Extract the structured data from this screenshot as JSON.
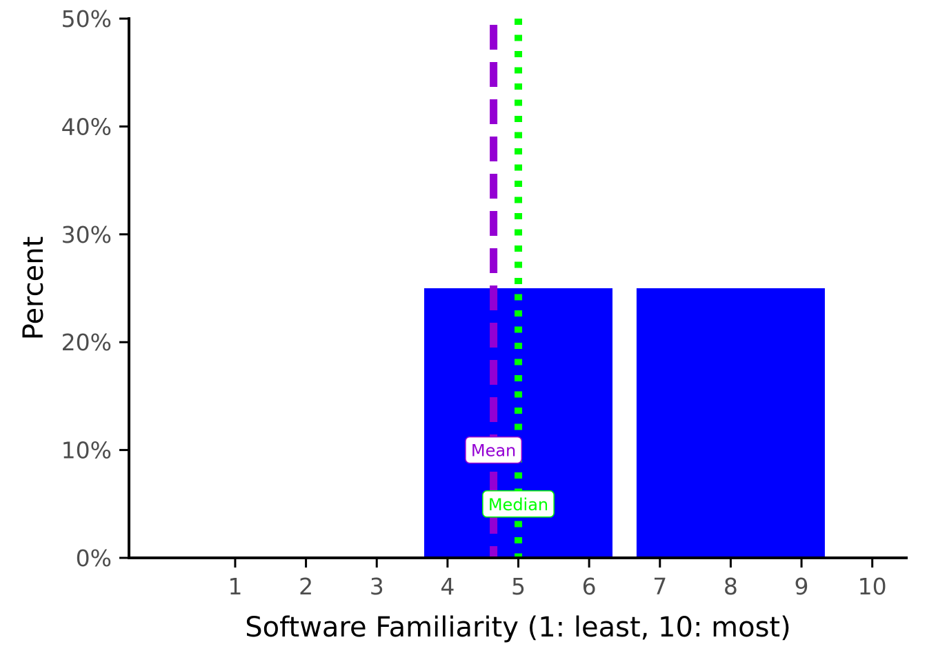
{
  "chart_data": {
    "type": "bar",
    "subtype": "histogram",
    "title": "",
    "xlabel": "Software Familiarity (1: least, 10: most)",
    "ylabel": "Percent",
    "x_ticks": [
      "1",
      "2",
      "3",
      "4",
      "5",
      "6",
      "7",
      "8",
      "9",
      "10"
    ],
    "y_ticks": [
      "0%",
      "10%",
      "20%",
      "30%",
      "40%",
      "50%"
    ],
    "xlim": [
      -0.5,
      10.5
    ],
    "ylim": [
      0,
      50
    ],
    "bins": [
      {
        "x_start": 3.67,
        "x_end": 6.33,
        "value": 25
      },
      {
        "x_start": 6.67,
        "x_end": 9.33,
        "value": 25
      }
    ],
    "bar_color": "#0000FF",
    "reference_lines": [
      {
        "label": "Mean",
        "value": 4.65,
        "color": "#9400D3",
        "style": "dashed",
        "label_y": 10
      },
      {
        "label": "Median",
        "value": 5,
        "color": "#00FF00",
        "style": "dotted",
        "label_y": 5
      }
    ],
    "grid": false,
    "legend": "none"
  }
}
